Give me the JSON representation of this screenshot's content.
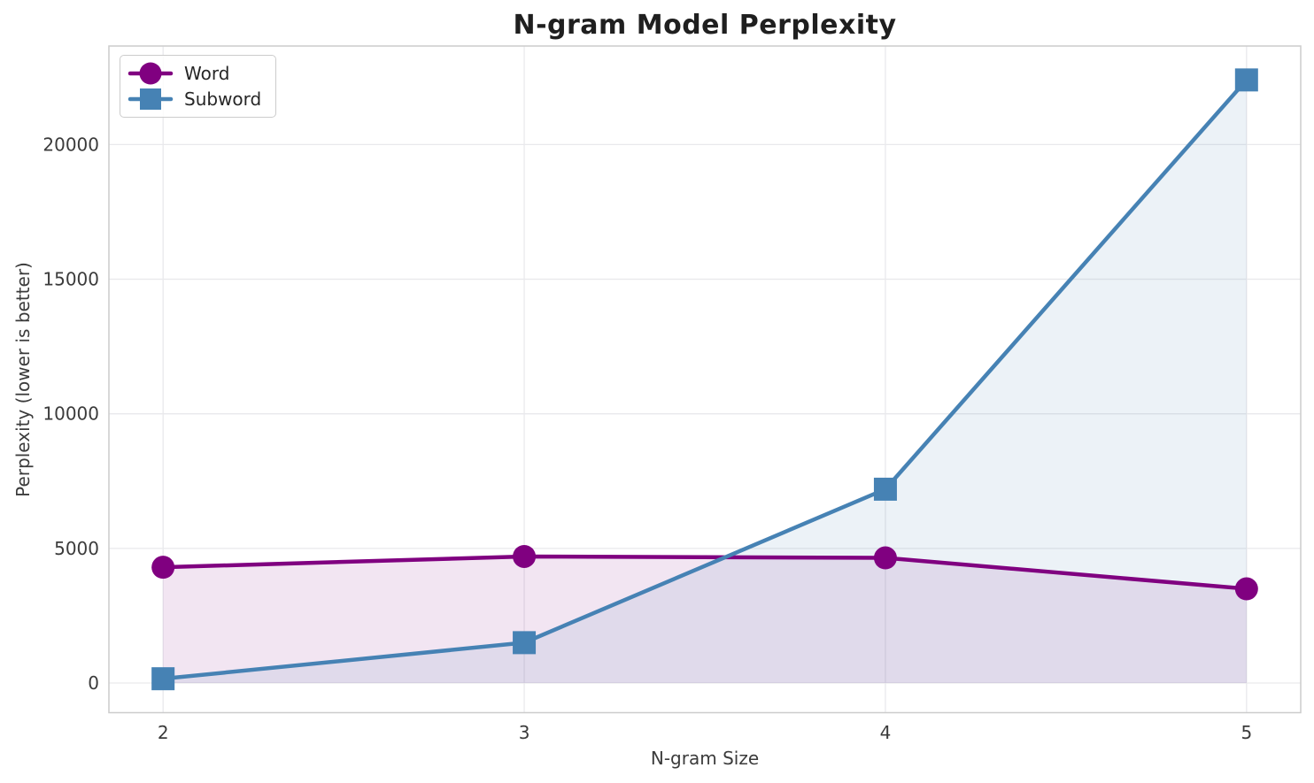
{
  "chart_data": {
    "type": "line",
    "title": "N-gram Model Perplexity",
    "xlabel": "N-gram Size",
    "ylabel": "Perplexity (lower is better)",
    "x": [
      2,
      3,
      4,
      5
    ],
    "series": [
      {
        "name": "Word",
        "values": [
          4300,
          4700,
          4650,
          3500
        ],
        "color": "#800080",
        "marker": "circle",
        "fill_to_zero": true
      },
      {
        "name": "Subword",
        "values": [
          160,
          1500,
          7200,
          22400
        ],
        "color": "#4682B4",
        "marker": "square",
        "fill_to_zero": true
      }
    ],
    "xticks": {
      "values": [
        2,
        3,
        4,
        5
      ],
      "labels": [
        "2",
        "3",
        "4",
        "5"
      ]
    },
    "yticks": {
      "values": [
        0,
        5000,
        10000,
        15000,
        20000
      ],
      "labels": [
        "0",
        "5000",
        "10000",
        "15000",
        "20000"
      ]
    },
    "xlim": [
      1.85,
      5.15
    ],
    "ylim": [
      -1100,
      23660
    ],
    "grid": true,
    "fill_alpha": 0.1,
    "line_width": 4.5,
    "marker_size": 26,
    "legend_position": "upper-left",
    "colors": {
      "grid": "#e9e9ec",
      "spine": "#cccccc",
      "tick_text": "#3b3b3b",
      "title_text": "#1f1f1f"
    }
  }
}
